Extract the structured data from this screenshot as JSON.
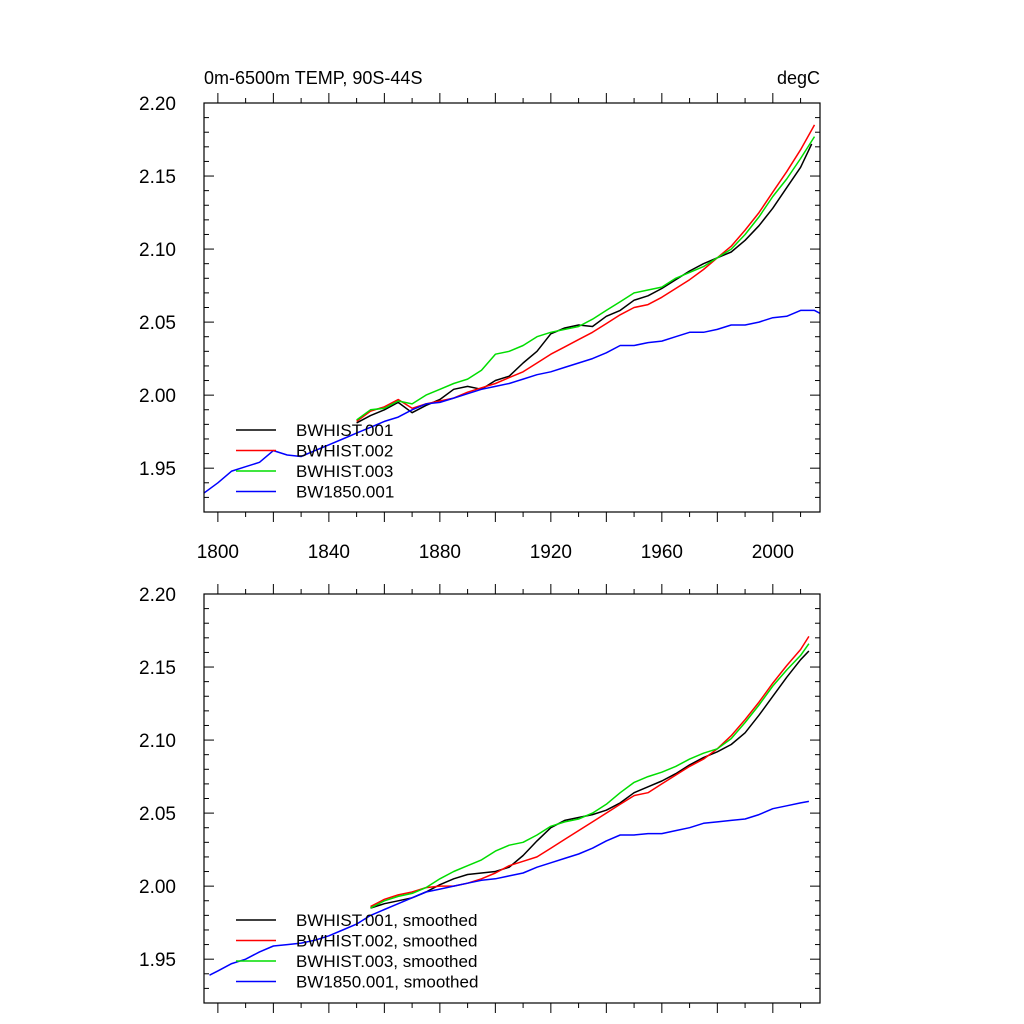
{
  "chart_data": [
    {
      "type": "line",
      "title": "0m-6500m TEMP, 90S-44S",
      "units": "degC",
      "xlim": [
        1795,
        2017
      ],
      "ylim": [
        1.92,
        2.2
      ],
      "xticks": [
        1800,
        1840,
        1880,
        1920,
        1960,
        2000
      ],
      "yticks": [
        1.95,
        2.0,
        2.05,
        2.1,
        2.15,
        2.2
      ],
      "xtick_labels": [
        "1800",
        "1840",
        "1880",
        "1920",
        "1960",
        "2000"
      ],
      "ytick_labels": [
        "1.95",
        "2.00",
        "2.05",
        "2.10",
        "2.15",
        "2.20"
      ],
      "legend_position": "bottom-left",
      "series": [
        {
          "name": "BWHIST.001",
          "color": "#000000",
          "x": [
            1850,
            1855,
            1860,
            1865,
            1870,
            1875,
            1880,
            1885,
            1890,
            1895,
            1900,
            1905,
            1910,
            1915,
            1920,
            1925,
            1930,
            1935,
            1940,
            1945,
            1950,
            1955,
            1960,
            1965,
            1970,
            1975,
            1980,
            1985,
            1990,
            1995,
            2000,
            2005,
            2010,
            2014
          ],
          "y": [
            1.981,
            1.986,
            1.99,
            1.995,
            1.988,
            1.993,
            1.997,
            2.004,
            2.006,
            2.004,
            2.01,
            2.013,
            2.022,
            2.03,
            2.042,
            2.046,
            2.048,
            2.047,
            2.054,
            2.058,
            2.065,
            2.068,
            2.073,
            2.079,
            2.085,
            2.09,
            2.094,
            2.098,
            2.106,
            2.116,
            2.128,
            2.142,
            2.156,
            2.172
          ]
        },
        {
          "name": "BWHIST.002",
          "color": "#ff0000",
          "x": [
            1850,
            1855,
            1860,
            1865,
            1870,
            1875,
            1880,
            1885,
            1890,
            1895,
            1900,
            1905,
            1910,
            1915,
            1920,
            1925,
            1930,
            1935,
            1940,
            1945,
            1950,
            1955,
            1960,
            1965,
            1970,
            1975,
            1980,
            1985,
            1990,
            1995,
            2000,
            2005,
            2010,
            2015
          ],
          "y": [
            1.982,
            1.989,
            1.992,
            1.997,
            1.991,
            1.994,
            1.996,
            1.998,
            2.002,
            2.005,
            2.008,
            2.012,
            2.016,
            2.022,
            2.028,
            2.033,
            2.038,
            2.043,
            2.049,
            2.055,
            2.06,
            2.062,
            2.067,
            2.073,
            2.079,
            2.086,
            2.094,
            2.102,
            2.113,
            2.125,
            2.139,
            2.153,
            2.168,
            2.185
          ]
        },
        {
          "name": "BWHIST.003",
          "color": "#00dd00",
          "x": [
            1850,
            1855,
            1860,
            1865,
            1870,
            1875,
            1880,
            1885,
            1890,
            1895,
            1900,
            1905,
            1910,
            1915,
            1920,
            1925,
            1930,
            1935,
            1940,
            1945,
            1950,
            1955,
            1960,
            1965,
            1970,
            1975,
            1980,
            1985,
            1990,
            1995,
            2000,
            2005,
            2010,
            2015
          ],
          "y": [
            1.983,
            1.99,
            1.991,
            1.996,
            1.994,
            2.0,
            2.004,
            2.008,
            2.011,
            2.017,
            2.028,
            2.03,
            2.034,
            2.04,
            2.043,
            2.045,
            2.047,
            2.052,
            2.058,
            2.064,
            2.07,
            2.072,
            2.074,
            2.08,
            2.084,
            2.088,
            2.094,
            2.1,
            2.11,
            2.122,
            2.136,
            2.148,
            2.162,
            2.177
          ]
        },
        {
          "name": "BW1850.001",
          "color": "#0000ff",
          "x": [
            1795,
            1800,
            1805,
            1810,
            1815,
            1820,
            1825,
            1830,
            1835,
            1840,
            1845,
            1850,
            1855,
            1860,
            1865,
            1870,
            1875,
            1880,
            1885,
            1890,
            1895,
            1900,
            1905,
            1910,
            1915,
            1920,
            1925,
            1930,
            1935,
            1940,
            1945,
            1950,
            1955,
            1960,
            1965,
            1970,
            1975,
            1980,
            1985,
            1990,
            1995,
            2000,
            2005,
            2010,
            2015,
            2017
          ],
          "y": [
            1.933,
            1.94,
            1.948,
            1.951,
            1.954,
            1.962,
            1.959,
            1.958,
            1.962,
            1.966,
            1.97,
            1.974,
            1.978,
            1.982,
            1.985,
            1.99,
            1.994,
            1.995,
            1.998,
            2.001,
            2.004,
            2.006,
            2.008,
            2.011,
            2.014,
            2.016,
            2.019,
            2.022,
            2.025,
            2.029,
            2.034,
            2.034,
            2.036,
            2.037,
            2.04,
            2.043,
            2.043,
            2.045,
            2.048,
            2.048,
            2.05,
            2.053,
            2.054,
            2.058,
            2.058,
            2.056
          ]
        }
      ]
    },
    {
      "type": "line",
      "title": "",
      "xlim": [
        1795,
        2017
      ],
      "ylim": [
        1.92,
        2.2
      ],
      "xticks": [
        1800,
        1840,
        1880,
        1920,
        1960,
        2000
      ],
      "yticks": [
        1.95,
        2.0,
        2.05,
        2.1,
        2.15,
        2.2
      ],
      "ytick_labels": [
        "1.95",
        "2.00",
        "2.05",
        "2.10",
        "2.15",
        "2.20"
      ],
      "legend_position": "bottom-left",
      "series": [
        {
          "name": "BWHIST.001, smoothed",
          "color": "#000000",
          "x": [
            1855,
            1860,
            1865,
            1870,
            1875,
            1880,
            1885,
            1890,
            1895,
            1900,
            1905,
            1910,
            1915,
            1920,
            1925,
            1930,
            1935,
            1940,
            1945,
            1950,
            1955,
            1960,
            1965,
            1970,
            1975,
            1980,
            1985,
            1990,
            1995,
            2000,
            2005,
            2010,
            2013
          ],
          "y": [
            1.985,
            1.988,
            1.99,
            1.992,
            1.996,
            2.001,
            2.005,
            2.008,
            2.009,
            2.01,
            2.013,
            2.021,
            2.031,
            2.04,
            2.045,
            2.047,
            2.049,
            2.052,
            2.057,
            2.064,
            2.068,
            2.072,
            2.077,
            2.083,
            2.088,
            2.092,
            2.097,
            2.105,
            2.117,
            2.13,
            2.143,
            2.155,
            2.161
          ]
        },
        {
          "name": "BWHIST.002, smoothed",
          "color": "#ff0000",
          "x": [
            1855,
            1860,
            1865,
            1870,
            1875,
            1880,
            1885,
            1890,
            1895,
            1900,
            1905,
            1910,
            1915,
            1920,
            1925,
            1930,
            1935,
            1940,
            1945,
            1950,
            1955,
            1960,
            1965,
            1970,
            1975,
            1980,
            1985,
            1990,
            1995,
            2000,
            2005,
            2010,
            2013
          ],
          "y": [
            1.986,
            1.991,
            1.994,
            1.996,
            1.999,
            2.0,
            2.0,
            2.002,
            2.005,
            2.009,
            2.014,
            2.017,
            2.02,
            2.026,
            2.032,
            2.038,
            2.044,
            2.05,
            2.056,
            2.062,
            2.064,
            2.07,
            2.076,
            2.082,
            2.087,
            2.094,
            2.103,
            2.114,
            2.126,
            2.139,
            2.151,
            2.162,
            2.171
          ]
        },
        {
          "name": "BWHIST.003, smoothed",
          "color": "#00dd00",
          "x": [
            1855,
            1860,
            1865,
            1870,
            1875,
            1880,
            1885,
            1890,
            1895,
            1900,
            1905,
            1910,
            1915,
            1920,
            1925,
            1930,
            1935,
            1940,
            1945,
            1950,
            1955,
            1960,
            1965,
            1970,
            1975,
            1980,
            1985,
            1990,
            1995,
            2000,
            2005,
            2010,
            2013
          ],
          "y": [
            1.985,
            1.99,
            1.993,
            1.995,
            1.999,
            2.005,
            2.01,
            2.014,
            2.018,
            2.024,
            2.028,
            2.03,
            2.035,
            2.041,
            2.044,
            2.046,
            2.05,
            2.056,
            2.064,
            2.071,
            2.075,
            2.078,
            2.082,
            2.087,
            2.091,
            2.094,
            2.101,
            2.112,
            2.124,
            2.137,
            2.148,
            2.158,
            2.166
          ]
        },
        {
          "name": "BW1850.001, smoothed",
          "color": "#0000ff",
          "x": [
            1797,
            1800,
            1805,
            1810,
            1815,
            1820,
            1825,
            1830,
            1835,
            1840,
            1845,
            1850,
            1855,
            1860,
            1865,
            1870,
            1875,
            1880,
            1885,
            1890,
            1895,
            1900,
            1905,
            1910,
            1915,
            1920,
            1925,
            1930,
            1935,
            1940,
            1945,
            1950,
            1955,
            1960,
            1965,
            1970,
            1975,
            1980,
            1985,
            1990,
            1995,
            2000,
            2005,
            2010,
            2013
          ],
          "y": [
            1.939,
            1.942,
            1.947,
            1.95,
            1.955,
            1.959,
            1.96,
            1.961,
            1.963,
            1.966,
            1.97,
            1.974,
            1.98,
            1.984,
            1.988,
            1.992,
            1.996,
            1.998,
            2.0,
            2.002,
            2.004,
            2.005,
            2.007,
            2.009,
            2.013,
            2.016,
            2.019,
            2.022,
            2.026,
            2.031,
            2.035,
            2.035,
            2.036,
            2.036,
            2.038,
            2.04,
            2.043,
            2.044,
            2.045,
            2.046,
            2.049,
            2.053,
            2.055,
            2.057,
            2.058
          ]
        }
      ]
    }
  ]
}
